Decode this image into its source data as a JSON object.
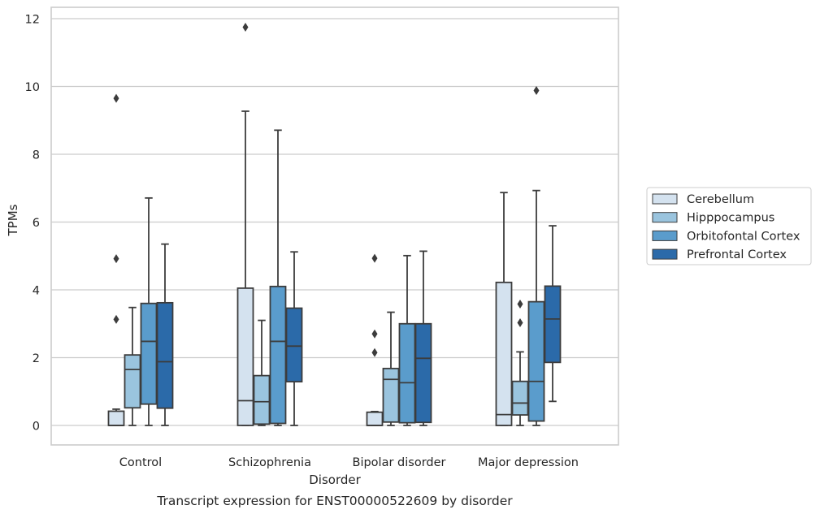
{
  "chart_data": {
    "type": "box",
    "title": "Transcript expression for ENST00000522609 by disorder",
    "xlabel": "Disorder",
    "ylabel": "TPMs",
    "ylim": [
      -0.55,
      12.35
    ],
    "yticks": [
      0,
      2,
      4,
      6,
      8,
      10,
      12
    ],
    "grid": "horizontal",
    "legend_position": "right",
    "categories": [
      "Control",
      "Schizophrenia",
      "Bipolar disorder",
      "Major depression"
    ],
    "series": [
      {
        "name": "Cerebellum",
        "color": "#d4e2ef",
        "boxes": [
          {
            "whisker_low": 0.0,
            "q1": 0.0,
            "median": 0.0,
            "q3": 0.42,
            "whisker_high": 0.48,
            "outliers": [
              9.65,
              4.92,
              3.13
            ]
          },
          {
            "whisker_low": 0.0,
            "q1": 0.0,
            "median": 0.73,
            "q3": 4.05,
            "whisker_high": 9.27,
            "outliers": [
              11.75
            ]
          },
          {
            "whisker_low": 0.0,
            "q1": 0.0,
            "median": 0.0,
            "q3": 0.39,
            "whisker_high": 0.41,
            "outliers": [
              4.93,
              2.7,
              2.15
            ]
          },
          {
            "whisker_low": 0.0,
            "q1": 0.0,
            "median": 0.32,
            "q3": 4.22,
            "whisker_high": 6.87,
            "outliers": []
          }
        ]
      },
      {
        "name": "Hipppocampus",
        "color": "#9ac4de",
        "boxes": [
          {
            "whisker_low": 0.0,
            "q1": 0.52,
            "median": 1.65,
            "q3": 2.08,
            "whisker_high": 3.48,
            "outliers": []
          },
          {
            "whisker_low": 0.0,
            "q1": 0.04,
            "median": 0.7,
            "q3": 1.47,
            "whisker_high": 3.1,
            "outliers": []
          },
          {
            "whisker_low": 0.0,
            "q1": 0.1,
            "median": 1.36,
            "q3": 1.68,
            "whisker_high": 3.34,
            "outliers": []
          },
          {
            "whisker_low": 0.0,
            "q1": 0.31,
            "median": 0.66,
            "q3": 1.3,
            "whisker_high": 2.17,
            "outliers": [
              3.58,
              3.03
            ]
          }
        ]
      },
      {
        "name": "Orbitofontal Cortex",
        "color": "#5a9ccc",
        "boxes": [
          {
            "whisker_low": 0.0,
            "q1": 0.63,
            "median": 2.48,
            "q3": 3.6,
            "whisker_high": 6.71,
            "outliers": []
          },
          {
            "whisker_low": 0.0,
            "q1": 0.06,
            "median": 2.48,
            "q3": 4.1,
            "whisker_high": 8.71,
            "outliers": []
          },
          {
            "whisker_low": 0.0,
            "q1": 0.08,
            "median": 1.26,
            "q3": 3.0,
            "whisker_high": 5.01,
            "outliers": []
          },
          {
            "whisker_low": 0.0,
            "q1": 0.13,
            "median": 1.3,
            "q3": 3.65,
            "whisker_high": 6.93,
            "outliers": [
              9.88
            ]
          }
        ]
      },
      {
        "name": "Prefrontal Cortex",
        "color": "#2b6aa9",
        "boxes": [
          {
            "whisker_low": 0.0,
            "q1": 0.51,
            "median": 1.88,
            "q3": 3.62,
            "whisker_high": 5.35,
            "outliers": []
          },
          {
            "whisker_low": 0.0,
            "q1": 1.29,
            "median": 2.34,
            "q3": 3.46,
            "whisker_high": 5.12,
            "outliers": []
          },
          {
            "whisker_low": 0.0,
            "q1": 0.09,
            "median": 1.98,
            "q3": 3.0,
            "whisker_high": 5.14,
            "outliers": []
          },
          {
            "whisker_low": 0.71,
            "q1": 1.86,
            "median": 3.14,
            "q3": 4.11,
            "whisker_high": 5.89,
            "outliers": []
          }
        ]
      }
    ]
  }
}
